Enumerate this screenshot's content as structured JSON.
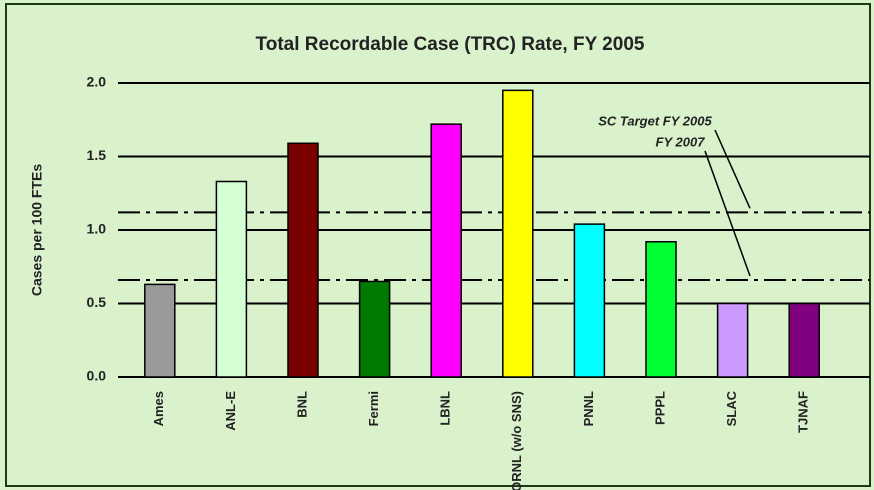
{
  "chart_data": {
    "type": "bar",
    "title": "Total Recordable Case (TRC) Rate, FY 2005",
    "y_label": "Cases per 100 FTEs",
    "categories": [
      "Ames",
      "ANL-E",
      "BNL",
      "Fermi",
      "LBNL",
      "ORNL (w/o SNS)",
      "PNNL",
      "PPPL",
      "SLAC",
      "TJNAF"
    ],
    "values": [
      0.63,
      1.33,
      1.59,
      0.65,
      1.72,
      1.95,
      1.04,
      0.92,
      0.5,
      0.5
    ],
    "colors": [
      "#9a9a9a",
      "#d4ffd4",
      "#7a0000",
      "#007a00",
      "#ff00ff",
      "#ffff00",
      "#00ffff",
      "#00ff33",
      "#cc99ff",
      "#800080"
    ],
    "ylim": [
      0,
      2
    ],
    "yticks": [
      {
        "value": 0,
        "label": "0.0"
      },
      0.5,
      {
        "value": 1,
        "label": "1.0"
      },
      1.5,
      {
        "value": 2,
        "label": "2.0"
      }
    ],
    "grid": true,
    "reference_lines": [
      {
        "label": "SC Target FY 2005",
        "value": 1.12
      },
      {
        "label": "FY 2007",
        "value": 0.66
      }
    ]
  }
}
